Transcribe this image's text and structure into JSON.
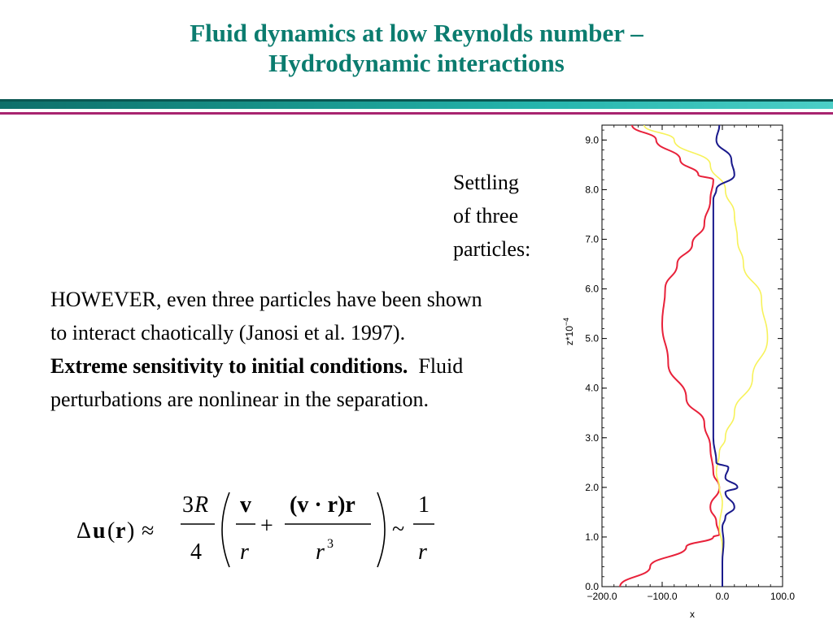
{
  "title": {
    "line1": "Fluid dynamics at low Reynolds number –",
    "line2": "Hydrodynamic interactions"
  },
  "caption": [
    "Settling",
    "of three",
    "particles:"
  ],
  "body": {
    "part1": "HOWEVER, even three particles have been shown to interact chaotically (Janosi et al. 1997).",
    "bold": "Extreme sensitivity to initial conditions.",
    "part2": "Fluid perturbations are nonlinear in the separation."
  },
  "formula": {
    "lhs_delta": "Δ",
    "lhs_u": "u",
    "lhs_open": "(",
    "lhs_r": "r",
    "lhs_close": ")",
    "approx": "≈",
    "coef_num_3": "3",
    "coef_num_R": "R",
    "coef_den": "4",
    "term1_num": "v",
    "term1_den": "r",
    "plus": "+",
    "term2_num": "(v · r)r",
    "term2_den": "r",
    "term2_exp": "3",
    "sim": "~",
    "rhs_num": "1",
    "rhs_den": "r"
  },
  "colors": {
    "title": "#0b7c6f",
    "rule_teal": "#168f86",
    "rule_magenta": "#a8246f",
    "red_curve": "#e8213a",
    "yellow_curve": "#f7f25a",
    "blue_curve": "#1a1a8c"
  },
  "chart_data": {
    "type": "line",
    "xlabel": "x",
    "ylabel": "z*10",
    "ylabel_exp": "−4",
    "xlim": [
      -200,
      100
    ],
    "ylim": [
      0,
      9.3
    ],
    "xticks": [
      "−200.0",
      "−100.0",
      "0.0",
      "100.0"
    ],
    "xtick_values": [
      -200,
      -100,
      0,
      100
    ],
    "yticks": [
      "0.0",
      "1.0",
      "2.0",
      "3.0",
      "4.0",
      "5.0",
      "6.0",
      "7.0",
      "8.0",
      "9.0"
    ],
    "ytick_values": [
      0,
      1,
      2,
      3,
      4,
      5,
      6,
      7,
      8,
      9
    ],
    "series": [
      {
        "color": "#e8213a",
        "points": [
          [
            -170,
            0
          ],
          [
            -120,
            0.4
          ],
          [
            -60,
            0.8
          ],
          [
            -15,
            1.0
          ],
          [
            -5,
            1.05
          ],
          [
            -10,
            1.3
          ],
          [
            -20,
            1.6
          ],
          [
            -5,
            2.0
          ],
          [
            -15,
            2.3
          ],
          [
            -20,
            2.8
          ],
          [
            -30,
            3.3
          ],
          [
            -60,
            3.8
          ],
          [
            -90,
            4.5
          ],
          [
            -100,
            5.3
          ],
          [
            -95,
            6.0
          ],
          [
            -75,
            6.5
          ],
          [
            -50,
            6.9
          ],
          [
            -30,
            7.3
          ],
          [
            -20,
            7.8
          ],
          [
            -15,
            8.2
          ],
          [
            -40,
            8.3
          ],
          [
            -70,
            8.6
          ],
          [
            -110,
            9.0
          ],
          [
            -150,
            9.3
          ]
        ]
      },
      {
        "color": "#f7f25a",
        "points": [
          [
            0,
            0
          ],
          [
            0,
            0.8
          ],
          [
            -5,
            1.2
          ],
          [
            0,
            1.7
          ],
          [
            -5,
            2.0
          ],
          [
            -10,
            2.3
          ],
          [
            -5,
            2.7
          ],
          [
            5,
            3.0
          ],
          [
            20,
            3.5
          ],
          [
            50,
            4.2
          ],
          [
            75,
            5.0
          ],
          [
            65,
            5.8
          ],
          [
            35,
            6.5
          ],
          [
            25,
            7.0
          ],
          [
            20,
            7.5
          ],
          [
            5,
            8.0
          ],
          [
            -20,
            8.5
          ],
          [
            -80,
            9.0
          ],
          [
            -130,
            9.3
          ]
        ]
      },
      {
        "color": "#1a1a8c",
        "points": [
          [
            0,
            0
          ],
          [
            0,
            0.5
          ],
          [
            2,
            0.9
          ],
          [
            0,
            1.2
          ],
          [
            5,
            1.4
          ],
          [
            20,
            1.6
          ],
          [
            5,
            1.9
          ],
          [
            25,
            2.0
          ],
          [
            5,
            2.2
          ],
          [
            10,
            2.4
          ],
          [
            -10,
            2.5
          ],
          [
            -15,
            3.0
          ],
          [
            -15,
            4.0
          ],
          [
            -15,
            5.0
          ],
          [
            -15,
            6.0
          ],
          [
            -15,
            7.0
          ],
          [
            -15,
            7.8
          ],
          [
            -10,
            8.0
          ],
          [
            20,
            8.3
          ],
          [
            15,
            8.6
          ],
          [
            -10,
            9.0
          ],
          [
            -5,
            9.3
          ]
        ]
      }
    ]
  }
}
